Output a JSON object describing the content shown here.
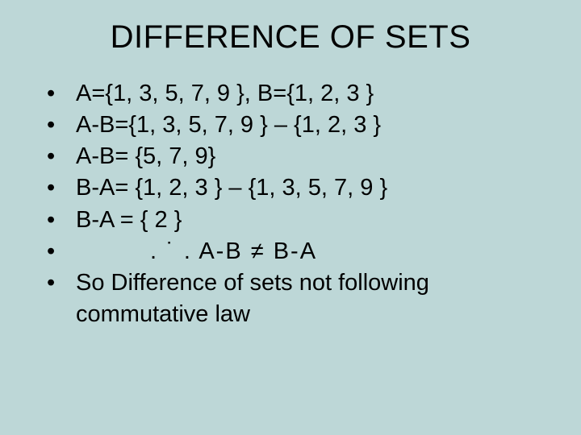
{
  "background_color": "#bdd7d7",
  "text_color": "#000000",
  "title": {
    "text": "DIFFERENCE OF SETS",
    "fontsize": 40
  },
  "bullets": {
    "fontsize": 29,
    "items": [
      "A={1, 3, 5, 7, 9 }, B={1, 2, 3 }",
      "A-B={1, 3, 5, 7, 9 } – {1, 2, 3 }",
      "A-B= {5, 7, 9}",
      "B-A= {1, 2, 3 } – {1, 3, 5, 7, 9 }",
      "B-A = { 2 }",
      ". ˙ .    A-B ≠ B-A",
      "So  Difference of sets  not following commutative law"
    ]
  }
}
